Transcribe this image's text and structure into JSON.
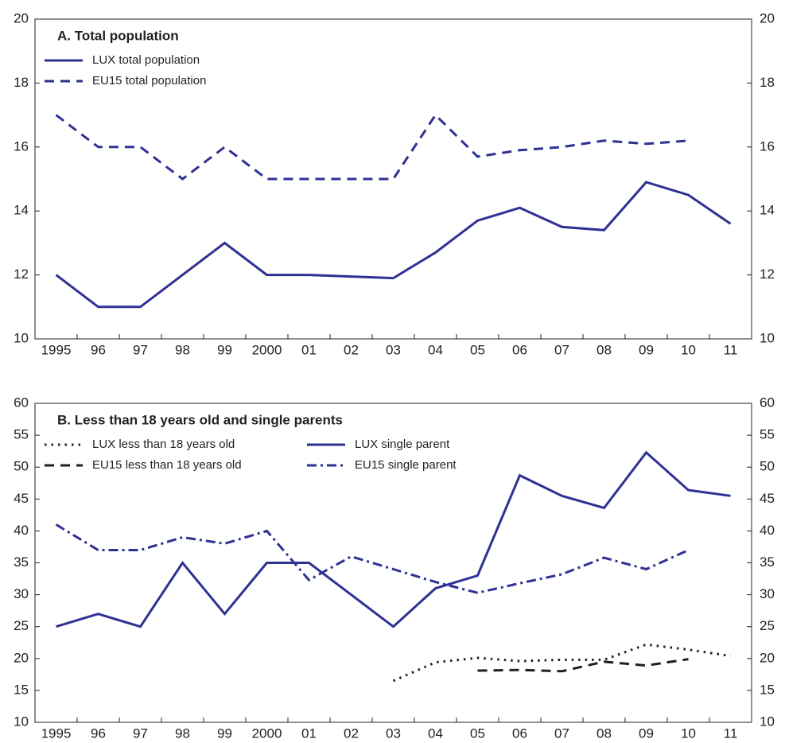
{
  "chart_data": [
    {
      "type": "line",
      "title": "A. Total population",
      "categories": [
        "1995",
        "96",
        "97",
        "98",
        "99",
        "2000",
        "01",
        "02",
        "03",
        "04",
        "05",
        "06",
        "07",
        "08",
        "09",
        "10",
        "11"
      ],
      "series": [
        {
          "name": "LUX total population",
          "color": "#2e3192",
          "dash": "solid",
          "values": [
            12,
            11,
            11,
            12,
            13,
            12,
            12,
            11.95,
            11.9,
            12.7,
            13.7,
            14.1,
            13.5,
            13.4,
            14.9,
            14.5,
            13.6
          ]
        },
        {
          "name": "EU15 total population",
          "color": "#2e3192",
          "dash": "dashed",
          "values": [
            17,
            16,
            16,
            15,
            16,
            15,
            15,
            15,
            15,
            17,
            15.7,
            15.9,
            16,
            16.2,
            16.1,
            16.2,
            null
          ]
        }
      ],
      "ylim": [
        10,
        20
      ],
      "yticks": [
        10,
        12,
        14,
        16,
        18,
        20
      ],
      "grid": false,
      "legend": "upper left"
    },
    {
      "type": "line",
      "title": "B. Less than 18 years old and single parents",
      "categories": [
        "1995",
        "96",
        "97",
        "98",
        "99",
        "2000",
        "01",
        "02",
        "03",
        "04",
        "05",
        "06",
        "07",
        "08",
        "09",
        "10",
        "11"
      ],
      "series": [
        {
          "name": "LUX less than 18 years old",
          "color": "#231f20",
          "dash": "dotted",
          "values": [
            null,
            null,
            null,
            null,
            null,
            null,
            null,
            null,
            16.5,
            19.4,
            20.1,
            19.6,
            19.8,
            19.8,
            22.2,
            21.4,
            20.4
          ]
        },
        {
          "name": "EU15 less than 18 years old",
          "color": "#231f20",
          "dash": "dashed",
          "values": [
            null,
            null,
            null,
            null,
            null,
            null,
            null,
            null,
            null,
            null,
            18.1,
            18.2,
            18.0,
            19.5,
            18.9,
            19.9,
            null
          ]
        },
        {
          "name": "LUX single parent",
          "color": "#2e3192",
          "dash": "solid",
          "values": [
            25,
            27,
            25,
            35,
            27,
            35,
            35,
            30,
            25,
            31,
            33,
            48.7,
            45.5,
            43.6,
            52.3,
            46.4,
            45.5
          ]
        },
        {
          "name": "EU15 single parent",
          "color": "#2e3192",
          "dash": "dashdot",
          "values": [
            41,
            37,
            37,
            39,
            38,
            40,
            32.3,
            36,
            34,
            32,
            30.3,
            31.8,
            33.2,
            35.8,
            34,
            37,
            null
          ]
        }
      ],
      "ylim": [
        10,
        60
      ],
      "yticks": [
        10,
        15,
        20,
        25,
        30,
        35,
        40,
        45,
        50,
        55,
        60
      ],
      "grid": false,
      "legend": "upper left"
    }
  ]
}
